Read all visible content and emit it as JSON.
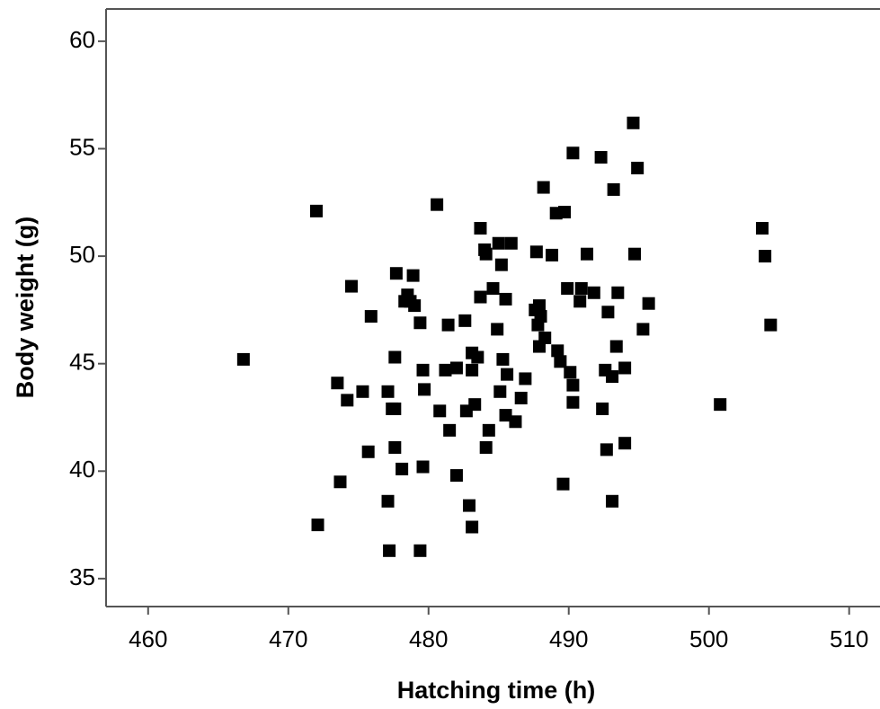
{
  "chart_data": {
    "type": "scatter",
    "x_label": "Hatching time (h)",
    "y_label": "Body weight (g)",
    "color": "#000000",
    "xlim": [
      457,
      512.2
    ],
    "ylim": [
      33.7,
      61.5
    ],
    "xticks": [
      460,
      470,
      480,
      490,
      500,
      510
    ],
    "yticks": [
      35,
      40,
      45,
      50,
      55,
      60
    ],
    "x": [
      466.8,
      472.0,
      472.1,
      473.5,
      473.7,
      474.2,
      474.5,
      475.3,
      475.7,
      475.9,
      477.1,
      477.1,
      477.2,
      477.4,
      477.6,
      477.7,
      477.6,
      477.6,
      478.1,
      478.3,
      478.5,
      478.7,
      478.9,
      479.0,
      479.4,
      479.4,
      479.6,
      479.6,
      479.7,
      480.6,
      480.8,
      481.4,
      481.5,
      481.2,
      482.0,
      482.0,
      482.6,
      482.7,
      482.9,
      483.1,
      483.1,
      483.1,
      483.3,
      483.5,
      483.7,
      483.7,
      484.0,
      484.1,
      484.1,
      484.3,
      484.6,
      484.9,
      485.0,
      485.2,
      485.1,
      485.3,
      485.5,
      485.6,
      485.5,
      485.9,
      486.2,
      486.6,
      486.9,
      487.7,
      487.6,
      487.8,
      487.9,
      487.9,
      488.0,
      488.2,
      488.3,
      488.8,
      489.1,
      489.2,
      489.4,
      489.6,
      489.7,
      489.9,
      490.1,
      490.3,
      490.3,
      490.3,
      490.8,
      490.9,
      491.3,
      491.8,
      492.3,
      492.4,
      492.6,
      492.7,
      492.8,
      493.1,
      493.1,
      493.2,
      493.4,
      493.5,
      494.0,
      494.0,
      494.6,
      494.7,
      494.9,
      495.3,
      495.7,
      500.8,
      503.8,
      504.0,
      504.4
    ],
    "y": [
      45.2,
      52.1,
      37.5,
      44.1,
      39.5,
      43.3,
      48.6,
      43.7,
      40.9,
      47.2,
      43.7,
      38.6,
      36.3,
      42.9,
      45.3,
      49.2,
      41.1,
      42.9,
      40.1,
      47.9,
      48.2,
      47.9,
      49.1,
      47.7,
      46.9,
      36.3,
      44.7,
      40.2,
      43.8,
      52.4,
      42.8,
      46.8,
      41.9,
      44.7,
      44.8,
      39.8,
      47.0,
      42.8,
      38.4,
      37.4,
      45.5,
      44.7,
      43.1,
      45.3,
      51.3,
      48.1,
      50.3,
      50.1,
      41.1,
      41.9,
      48.5,
      46.6,
      50.6,
      49.6,
      43.7,
      45.2,
      48.0,
      44.5,
      42.6,
      50.6,
      42.3,
      43.4,
      44.3,
      50.2,
      47.5,
      46.8,
      47.7,
      45.8,
      47.2,
      53.2,
      46.2,
      50.05,
      52.0,
      45.6,
      45.1,
      39.4,
      52.05,
      48.5,
      44.6,
      44.0,
      43.2,
      54.8,
      47.9,
      48.5,
      50.1,
      48.3,
      54.6,
      42.9,
      44.7,
      41.0,
      47.4,
      44.4,
      38.6,
      53.1,
      45.8,
      48.3,
      44.8,
      41.3,
      56.2,
      50.1,
      54.1,
      46.6,
      47.8,
      43.1,
      51.3,
      50.0,
      46.8
    ]
  }
}
